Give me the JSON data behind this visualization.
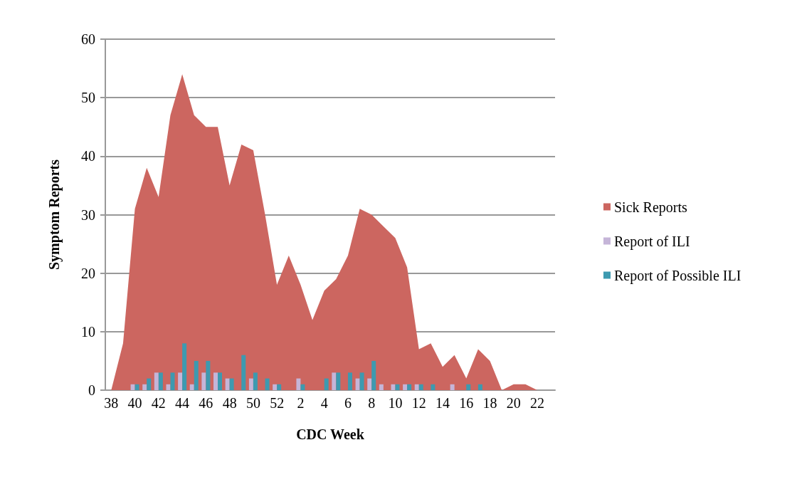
{
  "chart_data": {
    "type": "bar",
    "xlabel": "CDC Week",
    "ylabel": "Symptom Reports",
    "categories": [
      "38",
      null,
      "40",
      null,
      "42",
      null,
      "44",
      null,
      "46",
      null,
      "48",
      null,
      "50",
      null,
      "52",
      null,
      "2",
      null,
      "4",
      null,
      "6",
      null,
      "8",
      null,
      "10",
      null,
      "12",
      null,
      "14",
      null,
      "16",
      null,
      "18",
      null,
      "20",
      null,
      "22",
      null
    ],
    "series": [
      {
        "name": "Sick Reports",
        "type": "area",
        "color": "#cc6660",
        "values": [
          0,
          8,
          31,
          38,
          33,
          47,
          54,
          47,
          45,
          45,
          35,
          42,
          41,
          30,
          18,
          23,
          18,
          12,
          17,
          19,
          23,
          31,
          30,
          28,
          26,
          21,
          7,
          8,
          4,
          6,
          2,
          7,
          5,
          0,
          1,
          1,
          0,
          0
        ]
      },
      {
        "name": "Report of ILI",
        "color": "#c5b5d8",
        "values": [
          0,
          0,
          1,
          1,
          3,
          1,
          3,
          1,
          3,
          3,
          2,
          0,
          2,
          0,
          1,
          0,
          2,
          0,
          0,
          3,
          0,
          2,
          2,
          1,
          1,
          1,
          1,
          0,
          0,
          1,
          0,
          0,
          0,
          0,
          0,
          0,
          0,
          0
        ]
      },
      {
        "name": "Report of Possible ILI",
        "color": "#3d9ab0",
        "values": [
          0,
          0,
          1,
          2,
          3,
          3,
          8,
          5,
          5,
          3,
          2,
          6,
          3,
          2,
          1,
          0,
          1,
          0,
          2,
          3,
          3,
          3,
          5,
          0,
          1,
          1,
          1,
          1,
          0,
          0,
          1,
          1,
          0,
          0,
          0,
          0,
          0,
          0
        ]
      }
    ],
    "ylim": [
      0,
      60
    ],
    "yticks": [
      0,
      10,
      20,
      30,
      40,
      50,
      60
    ],
    "grid": "y",
    "legend": "right"
  }
}
